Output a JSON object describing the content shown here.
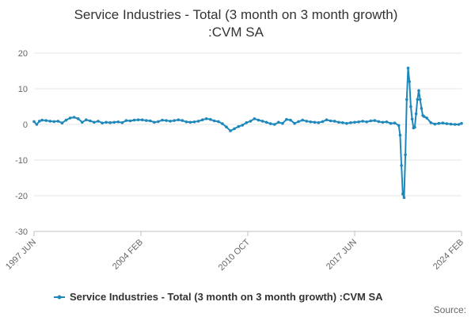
{
  "chart_data": {
    "type": "line",
    "title_line1": "Service Industries - Total (3 month on 3 month growth)",
    "title_line2": ":CVM SA",
    "xlabel": "",
    "ylabel": "",
    "x_ticks": [
      "1997 JUN",
      "2004 FEB",
      "2010 OCT",
      "2017 JUN",
      "2024 FEB"
    ],
    "x_range": [
      "1997 JUN",
      "2024 FEB"
    ],
    "ylim": [
      -30,
      20
    ],
    "y_ticks": [
      -30,
      -20,
      -10,
      0,
      10,
      20
    ],
    "grid": "horizontal",
    "legend_position": "bottom",
    "series": [
      {
        "name": "Service Industries - Total (3 month on 3 month growth) :CVM SA",
        "color": "#1f88bb",
        "points": [
          [
            "1997-06",
            0.8
          ],
          [
            "1997-08",
            0.0
          ],
          [
            "1997-10",
            0.9
          ],
          [
            "1997-12",
            1.2
          ],
          [
            "1998-03",
            1.1
          ],
          [
            "1998-06",
            0.9
          ],
          [
            "1998-09",
            0.8
          ],
          [
            "1998-12",
            0.9
          ],
          [
            "1999-03",
            0.4
          ],
          [
            "1999-06",
            1.2
          ],
          [
            "1999-09",
            1.8
          ],
          [
            "1999-12",
            2.0
          ],
          [
            "2000-03",
            1.6
          ],
          [
            "2000-06",
            0.6
          ],
          [
            "2000-09",
            1.3
          ],
          [
            "2000-12",
            1.0
          ],
          [
            "2001-03",
            0.6
          ],
          [
            "2001-06",
            0.9
          ],
          [
            "2001-09",
            0.4
          ],
          [
            "2001-12",
            0.6
          ],
          [
            "2002-03",
            0.5
          ],
          [
            "2002-06",
            0.6
          ],
          [
            "2002-09",
            0.7
          ],
          [
            "2002-12",
            0.5
          ],
          [
            "2003-03",
            1.1
          ],
          [
            "2003-06",
            1.0
          ],
          [
            "2003-09",
            1.2
          ],
          [
            "2003-12",
            1.3
          ],
          [
            "2004-03",
            1.3
          ],
          [
            "2004-06",
            1.1
          ],
          [
            "2004-09",
            1.0
          ],
          [
            "2004-12",
            0.6
          ],
          [
            "2005-03",
            0.8
          ],
          [
            "2005-06",
            1.2
          ],
          [
            "2005-09",
            1.1
          ],
          [
            "2005-12",
            0.9
          ],
          [
            "2006-03",
            1.1
          ],
          [
            "2006-06",
            1.3
          ],
          [
            "2006-09",
            1.1
          ],
          [
            "2006-12",
            0.7
          ],
          [
            "2007-03",
            0.6
          ],
          [
            "2007-06",
            0.7
          ],
          [
            "2007-09",
            0.9
          ],
          [
            "2007-12",
            1.3
          ],
          [
            "2008-03",
            1.6
          ],
          [
            "2008-06",
            1.4
          ],
          [
            "2008-09",
            1.0
          ],
          [
            "2008-12",
            0.8
          ],
          [
            "2009-03",
            0.2
          ],
          [
            "2009-06",
            -0.7
          ],
          [
            "2009-09",
            -1.8
          ],
          [
            "2009-12",
            -1.2
          ],
          [
            "2010-03",
            -0.6
          ],
          [
            "2010-06",
            -0.2
          ],
          [
            "2010-09",
            0.5
          ],
          [
            "2010-12",
            0.9
          ],
          [
            "2011-03",
            1.6
          ],
          [
            "2011-06",
            1.2
          ],
          [
            "2011-09",
            0.9
          ],
          [
            "2011-12",
            0.6
          ],
          [
            "2012-03",
            0.2
          ],
          [
            "2012-06",
            0.0
          ],
          [
            "2012-09",
            0.6
          ],
          [
            "2012-12",
            0.3
          ],
          [
            "2013-03",
            1.4
          ],
          [
            "2013-06",
            1.2
          ],
          [
            "2013-09",
            0.3
          ],
          [
            "2013-12",
            0.8
          ],
          [
            "2014-03",
            1.2
          ],
          [
            "2014-06",
            0.9
          ],
          [
            "2014-09",
            0.7
          ],
          [
            "2014-12",
            0.6
          ],
          [
            "2015-03",
            0.5
          ],
          [
            "2015-06",
            0.8
          ],
          [
            "2015-09",
            1.3
          ],
          [
            "2015-12",
            1.0
          ],
          [
            "2016-03",
            0.9
          ],
          [
            "2016-06",
            0.6
          ],
          [
            "2016-09",
            0.5
          ],
          [
            "2016-12",
            0.3
          ],
          [
            "2017-03",
            0.5
          ],
          [
            "2017-06",
            0.6
          ],
          [
            "2017-09",
            0.7
          ],
          [
            "2017-12",
            0.9
          ],
          [
            "2018-03",
            0.7
          ],
          [
            "2018-06",
            1.0
          ],
          [
            "2018-09",
            1.1
          ],
          [
            "2018-12",
            0.8
          ],
          [
            "2019-03",
            0.6
          ],
          [
            "2019-06",
            0.7
          ],
          [
            "2019-09",
            0.3
          ],
          [
            "2019-12",
            0.4
          ],
          [
            "2020-03",
            -0.3
          ],
          [
            "2020-04",
            -3.0
          ],
          [
            "2020-05",
            -11.5
          ],
          [
            "2020-06",
            -19.5
          ],
          [
            "2020-07",
            -20.5
          ],
          [
            "2020-08",
            -8.5
          ],
          [
            "2020-09",
            7.0
          ],
          [
            "2020-10",
            15.8
          ],
          [
            "2020-11",
            12.0
          ],
          [
            "2020-12",
            5.0
          ],
          [
            "2021-01",
            1.5
          ],
          [
            "2021-02",
            -1.0
          ],
          [
            "2021-03",
            -0.8
          ],
          [
            "2021-04",
            3.0
          ],
          [
            "2021-05",
            7.0
          ],
          [
            "2021-06",
            9.5
          ],
          [
            "2021-07",
            7.0
          ],
          [
            "2021-08",
            4.5
          ],
          [
            "2021-09",
            2.5
          ],
          [
            "2021-10",
            2.2
          ],
          [
            "2021-12",
            1.8
          ],
          [
            "2022-03",
            0.5
          ],
          [
            "2022-06",
            0.1
          ],
          [
            "2022-09",
            0.3
          ],
          [
            "2022-12",
            0.4
          ],
          [
            "2023-03",
            0.2
          ],
          [
            "2023-06",
            0.1
          ],
          [
            "2023-09",
            0.0
          ],
          [
            "2023-12",
            0.0
          ],
          [
            "2024-02",
            0.3
          ]
        ]
      }
    ]
  },
  "footer": {
    "source_label": "Source:"
  }
}
